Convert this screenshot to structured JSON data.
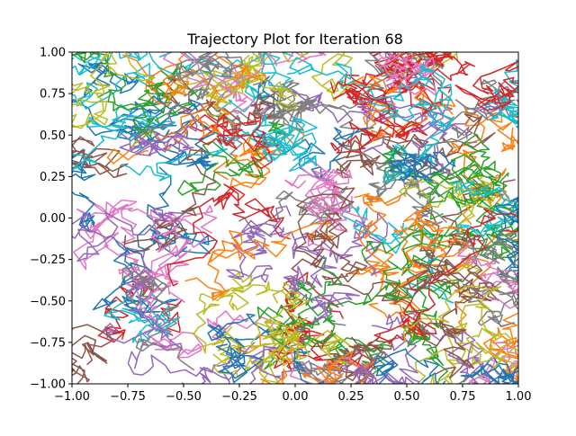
{
  "chart_data": {
    "type": "line",
    "title": "Trajectory Plot for Iteration 68",
    "xlabel": "",
    "ylabel": "",
    "xlim": [
      -1.0,
      1.0
    ],
    "ylim": [
      -1.0,
      1.0
    ],
    "xticks": [
      "−1.00",
      "−0.75",
      "−0.50",
      "−0.25",
      "0.00",
      "0.25",
      "0.50",
      "0.75",
      "1.00"
    ],
    "yticks": [
      "−1.00",
      "−0.75",
      "−0.50",
      "−0.25",
      "0.00",
      "0.25",
      "0.50",
      "0.75",
      "1.00"
    ],
    "grid": false,
    "legend": false,
    "color_cycle": [
      "#1f77b4",
      "#ff7f0e",
      "#2ca02c",
      "#d62728",
      "#9467bd",
      "#8c564b",
      "#e377c2",
      "#7f7f7f",
      "#bcbd22",
      "#17becf"
    ],
    "trajectories": {
      "count": 120,
      "points_per_trajectory": 60,
      "step_size": 0.07,
      "note": "dense random-walk trajectories filling the unit square; individual points not legible"
    }
  }
}
